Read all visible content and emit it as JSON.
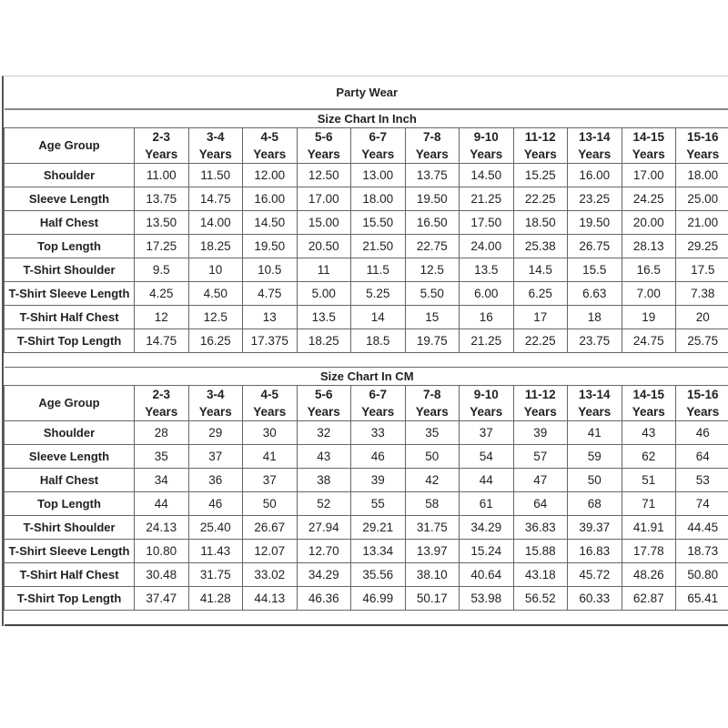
{
  "title": "Party Wear",
  "age_group_label": "Age Group",
  "age_groups": [
    [
      "2-3",
      "Years"
    ],
    [
      "3-4",
      "Years"
    ],
    [
      "4-5",
      "Years"
    ],
    [
      "5-6",
      "Years"
    ],
    [
      "6-7",
      "Years"
    ],
    [
      "7-8",
      "Years"
    ],
    [
      "9-10",
      "Years"
    ],
    [
      "11-12",
      "Years"
    ],
    [
      "13-14",
      "Years"
    ],
    [
      "14-15",
      "Years"
    ],
    [
      "15-16",
      "Years"
    ]
  ],
  "sections": [
    {
      "heading": "Size Chart In Inch",
      "rows": [
        {
          "label": "Shoulder",
          "values": [
            "11.00",
            "11.50",
            "12.00",
            "12.50",
            "13.00",
            "13.75",
            "14.50",
            "15.25",
            "16.00",
            "17.00",
            "18.00"
          ]
        },
        {
          "label": "Sleeve Length",
          "values": [
            "13.75",
            "14.75",
            "16.00",
            "17.00",
            "18.00",
            "19.50",
            "21.25",
            "22.25",
            "23.25",
            "24.25",
            "25.00"
          ]
        },
        {
          "label": "Half Chest",
          "values": [
            "13.50",
            "14.00",
            "14.50",
            "15.00",
            "15.50",
            "16.50",
            "17.50",
            "18.50",
            "19.50",
            "20.00",
            "21.00"
          ]
        },
        {
          "label": "Top Length",
          "values": [
            "17.25",
            "18.25",
            "19.50",
            "20.50",
            "21.50",
            "22.75",
            "24.00",
            "25.38",
            "26.75",
            "28.13",
            "29.25"
          ]
        },
        {
          "label": "T-Shirt Shoulder",
          "values": [
            "9.5",
            "10",
            "10.5",
            "11",
            "11.5",
            "12.5",
            "13.5",
            "14.5",
            "15.5",
            "16.5",
            "17.5"
          ]
        },
        {
          "label": "T-Shirt Sleeve Length",
          "values": [
            "4.25",
            "4.50",
            "4.75",
            "5.00",
            "5.25",
            "5.50",
            "6.00",
            "6.25",
            "6.63",
            "7.00",
            "7.38"
          ]
        },
        {
          "label": "T-Shirt Half Chest",
          "values": [
            "12",
            "12.5",
            "13",
            "13.5",
            "14",
            "15",
            "16",
            "17",
            "18",
            "19",
            "20"
          ]
        },
        {
          "label": "T-Shirt Top Length",
          "values": [
            "14.75",
            "16.25",
            "17.375",
            "18.25",
            "18.5",
            "19.75",
            "21.25",
            "22.25",
            "23.75",
            "24.75",
            "25.75"
          ]
        }
      ]
    },
    {
      "heading": "Size Chart In CM",
      "rows": [
        {
          "label": "Shoulder",
          "values": [
            "28",
            "29",
            "30",
            "32",
            "33",
            "35",
            "37",
            "39",
            "41",
            "43",
            "46"
          ]
        },
        {
          "label": "Sleeve Length",
          "values": [
            "35",
            "37",
            "41",
            "43",
            "46",
            "50",
            "54",
            "57",
            "59",
            "62",
            "64"
          ]
        },
        {
          "label": "Half Chest",
          "values": [
            "34",
            "36",
            "37",
            "38",
            "39",
            "42",
            "44",
            "47",
            "50",
            "51",
            "53"
          ]
        },
        {
          "label": "Top Length",
          "values": [
            "44",
            "46",
            "50",
            "52",
            "55",
            "58",
            "61",
            "64",
            "68",
            "71",
            "74"
          ]
        },
        {
          "label": "T-Shirt Shoulder",
          "values": [
            "24.13",
            "25.40",
            "26.67",
            "27.94",
            "29.21",
            "31.75",
            "34.29",
            "36.83",
            "39.37",
            "41.91",
            "44.45"
          ]
        },
        {
          "label": "T-Shirt Sleeve Length",
          "values": [
            "10.80",
            "11.43",
            "12.07",
            "12.70",
            "13.34",
            "13.97",
            "15.24",
            "15.88",
            "16.83",
            "17.78",
            "18.73"
          ]
        },
        {
          "label": "T-Shirt Half Chest",
          "values": [
            "30.48",
            "31.75",
            "33.02",
            "34.29",
            "35.56",
            "38.10",
            "40.64",
            "43.18",
            "45.72",
            "48.26",
            "50.80"
          ]
        },
        {
          "label": "T-Shirt Top Length",
          "values": [
            "37.47",
            "41.28",
            "44.13",
            "46.36",
            "46.99",
            "50.17",
            "53.98",
            "56.52",
            "60.33",
            "62.87",
            "65.41"
          ]
        }
      ]
    }
  ]
}
